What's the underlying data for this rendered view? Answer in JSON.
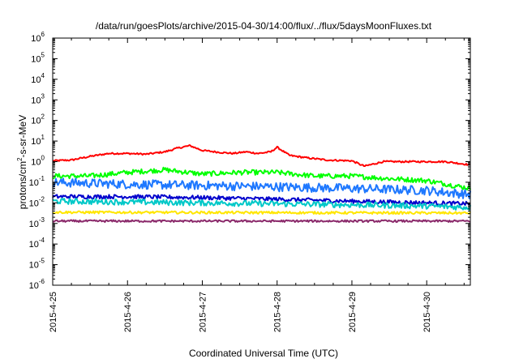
{
  "chart_data": {
    "type": "line",
    "title": "/data/run/goesPlots/archive/2015-04-30/14:00/flux/../flux/5daysMoonFluxes.txt",
    "xlabel": "Coordinated Universal Time (UTC)",
    "ylabel": {
      "prefix": "protons/cm",
      "sup": "2",
      "suffix": "-s-sr-MeV"
    },
    "yscale": "log",
    "ylim": [
      1e-06,
      1000000.0
    ],
    "y_ticks": [
      {
        "base": "10",
        "exp": "-6",
        "value": 1e-06
      },
      {
        "base": "10",
        "exp": "-5",
        "value": 1e-05
      },
      {
        "base": "10",
        "exp": "-4",
        "value": 0.0001
      },
      {
        "base": "10",
        "exp": "-3",
        "value": 0.001
      },
      {
        "base": "10",
        "exp": "-2",
        "value": 0.01
      },
      {
        "base": "10",
        "exp": "-1",
        "value": 0.1
      },
      {
        "base": "10",
        "exp": "0",
        "value": 1
      },
      {
        "base": "10",
        "exp": "1",
        "value": 10.0
      },
      {
        "base": "10",
        "exp": "2",
        "value": 100.0
      },
      {
        "base": "10",
        "exp": "3",
        "value": 1000.0
      },
      {
        "base": "10",
        "exp": "4",
        "value": 10000.0
      },
      {
        "base": "10",
        "exp": "5",
        "value": 100000.0
      },
      {
        "base": "10",
        "exp": "6",
        "value": 1000000.0
      }
    ],
    "xlim": [
      "2015-04-25 00:00",
      "2015-04-30 14:00"
    ],
    "x_ticks": [
      "2015-4-25",
      "2015-4-26",
      "2015-4-27",
      "2015-4-28",
      "2015-4-29",
      "2015-4-30"
    ],
    "grid": false,
    "legend": "none",
    "series": [
      {
        "color": "#ff0000",
        "noise": 0.04,
        "points": [
          [
            "2015-04-25 00:00",
            1.1
          ],
          [
            "2015-04-25 06:00",
            1.2
          ],
          [
            "2015-04-25 12:00",
            1.8
          ],
          [
            "2015-04-25 18:00",
            2.5
          ],
          [
            "2015-04-26 00:00",
            2.5
          ],
          [
            "2015-04-26 06:00",
            2.3
          ],
          [
            "2015-04-26 12:00",
            3.0
          ],
          [
            "2015-04-26 16:00",
            4.5
          ],
          [
            "2015-04-26 20:00",
            6.0
          ],
          [
            "2015-04-27 00:00",
            3.5
          ],
          [
            "2015-04-27 06:00",
            2.8
          ],
          [
            "2015-04-27 10:00",
            2.5
          ],
          [
            "2015-04-27 14:00",
            3.0
          ],
          [
            "2015-04-27 18:00",
            2.5
          ],
          [
            "2015-04-27 22:00",
            3.0
          ],
          [
            "2015-04-28 00:00",
            5.0
          ],
          [
            "2015-04-28 04:00",
            2.0
          ],
          [
            "2015-04-28 10:00",
            1.5
          ],
          [
            "2015-04-28 16:00",
            1.2
          ],
          [
            "2015-04-29 00:00",
            1.1
          ],
          [
            "2015-04-29 04:00",
            0.6
          ],
          [
            "2015-04-29 10:00",
            1.0
          ],
          [
            "2015-04-29 18:00",
            1.0
          ],
          [
            "2015-04-30 00:00",
            1.0
          ],
          [
            "2015-04-30 06:00",
            1.0
          ],
          [
            "2015-04-30 14:00",
            0.7
          ]
        ]
      },
      {
        "color": "#00ff00",
        "noise": 0.12,
        "points": [
          [
            "2015-04-25 00:00",
            0.2
          ],
          [
            "2015-04-25 12:00",
            0.2
          ],
          [
            "2015-04-26 00:00",
            0.3
          ],
          [
            "2015-04-26 12:00",
            0.4
          ],
          [
            "2015-04-27 00:00",
            0.25
          ],
          [
            "2015-04-27 12:00",
            0.3
          ],
          [
            "2015-04-28 00:00",
            0.3
          ],
          [
            "2015-04-28 12:00",
            0.2
          ],
          [
            "2015-04-29 00:00",
            0.2
          ],
          [
            "2015-04-29 12:00",
            0.15
          ],
          [
            "2015-04-30 00:00",
            0.12
          ],
          [
            "2015-04-30 14:00",
            0.05
          ]
        ]
      },
      {
        "color": "#1e78ff",
        "noise": 0.22,
        "points": [
          [
            "2015-04-25 00:00",
            0.1
          ],
          [
            "2015-04-26 00:00",
            0.08
          ],
          [
            "2015-04-27 00:00",
            0.07
          ],
          [
            "2015-04-28 00:00",
            0.06
          ],
          [
            "2015-04-29 00:00",
            0.05
          ],
          [
            "2015-04-30 00:00",
            0.04
          ],
          [
            "2015-04-30 14:00",
            0.025
          ]
        ]
      },
      {
        "color": "#0000cc",
        "noise": 0.1,
        "points": [
          [
            "2015-04-25 00:00",
            0.02
          ],
          [
            "2015-04-26 00:00",
            0.02
          ],
          [
            "2015-04-27 00:00",
            0.018
          ],
          [
            "2015-04-28 00:00",
            0.015
          ],
          [
            "2015-04-29 00:00",
            0.012
          ],
          [
            "2015-04-30 00:00",
            0.01
          ],
          [
            "2015-04-30 14:00",
            0.009
          ]
        ]
      },
      {
        "color": "#00c8c8",
        "noise": 0.14,
        "points": [
          [
            "2015-04-25 00:00",
            0.012
          ],
          [
            "2015-04-26 00:00",
            0.011
          ],
          [
            "2015-04-27 00:00",
            0.01
          ],
          [
            "2015-04-28 00:00",
            0.009
          ],
          [
            "2015-04-29 00:00",
            0.008
          ],
          [
            "2015-04-30 00:00",
            0.007
          ],
          [
            "2015-04-30 14:00",
            0.006
          ]
        ]
      },
      {
        "color": "#ffe600",
        "noise": 0.06,
        "points": [
          [
            "2015-04-25 00:00",
            0.0035
          ],
          [
            "2015-04-30 14:00",
            0.0032
          ]
        ]
      },
      {
        "color": "#8b2a6b",
        "noise": 0.05,
        "points": [
          [
            "2015-04-25 00:00",
            0.0013
          ],
          [
            "2015-04-30 14:00",
            0.0013
          ]
        ]
      }
    ]
  }
}
